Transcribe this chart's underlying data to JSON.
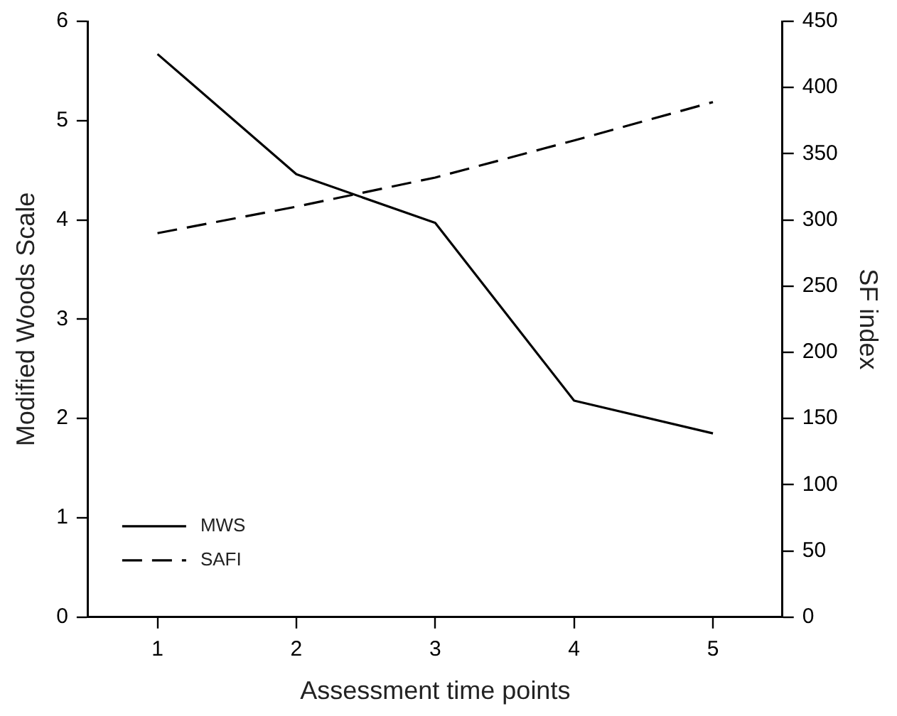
{
  "chart_data": {
    "type": "line",
    "xlabel": "Assessment time points",
    "ylabel": "Modified Woods Scale",
    "y2label": "SF index",
    "x": [
      1,
      2,
      3,
      4,
      5
    ],
    "series": [
      {
        "name": "MWS",
        "color": "#000000",
        "values": [
          5.67,
          4.46,
          3.97,
          2.18,
          1.85
        ],
        "line_style": "solid"
      },
      {
        "name": "SAFI",
        "color": "#000000",
        "values": [
          290,
          310,
          332,
          360,
          389
        ],
        "axis": "y2",
        "line_style": "dashed"
      }
    ],
    "xlim": [
      0.5,
      5.5
    ],
    "xticks": [
      1,
      2,
      3,
      4,
      5
    ],
    "ylim": [
      0,
      6
    ],
    "yticks": [
      0,
      1,
      2,
      3,
      4,
      5,
      6
    ],
    "y2lim": [
      0,
      450
    ],
    "y2ticks": [
      0,
      50,
      100,
      150,
      200,
      250,
      300,
      350,
      400,
      450
    ],
    "grid": false,
    "legend": "bottom left",
    "marker": "none"
  }
}
